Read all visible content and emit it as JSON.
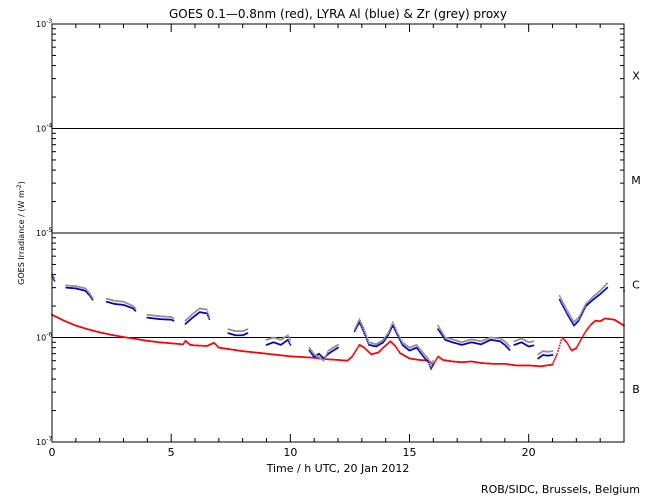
{
  "chart_data": {
    "type": "scatter",
    "title": "GOES 0.1—0.8nm (red), LYRA Al (blue) & Zr (grey) proxy",
    "xlabel": "Time / h UTC, 20 Jan 2012",
    "ylabel": "GOES Irradiance / (W m",
    "ylabel_sup": "-2",
    "ylabel_close": ")",
    "xlim": [
      0,
      24
    ],
    "ylim": [
      1e-07,
      0.001
    ],
    "yscale": "log",
    "x_ticks": [
      0,
      5,
      10,
      15,
      20
    ],
    "x_tick_labels": [
      "0",
      "5",
      "10",
      "15",
      "20"
    ],
    "y_ticks": [
      {
        "value": 0.001,
        "base": "10",
        "exp": "-3"
      },
      {
        "value": 0.0001,
        "base": "10",
        "exp": "-4"
      },
      {
        "value": 1e-05,
        "base": "10",
        "exp": "-5"
      },
      {
        "value": 1e-06,
        "base": "10",
        "exp": "-6"
      },
      {
        "value": 1e-07,
        "base": "10",
        "exp": "-7"
      }
    ],
    "class_lines": [
      0.0001,
      1e-05,
      1e-06
    ],
    "class_labels": [
      {
        "label": "X",
        "value": 0.00032
      },
      {
        "label": "M",
        "value": 3.2e-05
      },
      {
        "label": "C",
        "value": 3.2e-06
      },
      {
        "label": "B",
        "value": 3.2e-07
      }
    ],
    "series": [
      {
        "color": "#ff0000",
        "style": "dots",
        "segments": [
          [
            [
              0.0,
              1.65e-06
            ],
            [
              0.5,
              1.45e-06
            ],
            [
              1.0,
              1.3e-06
            ],
            [
              1.5,
              1.2e-06
            ],
            [
              2.0,
              1.12e-06
            ],
            [
              2.5,
              1.06e-06
            ],
            [
              3.0,
              1.01e-06
            ],
            [
              3.5,
              9.7e-07
            ],
            [
              4.0,
              9.3e-07
            ],
            [
              4.5,
              9e-07
            ],
            [
              5.0,
              8.8e-07
            ],
            [
              5.5,
              8.6e-07
            ],
            [
              5.6,
              9.3e-07
            ],
            [
              5.8,
              8.5e-07
            ],
            [
              6.0,
              8.4e-07
            ],
            [
              6.5,
              8.3e-07
            ],
            [
              6.8,
              8.9e-07
            ],
            [
              7.0,
              8e-07
            ],
            [
              7.5,
              7.7e-07
            ],
            [
              8.0,
              7.4e-07
            ],
            [
              8.5,
              7.2e-07
            ],
            [
              9.0,
              7e-07
            ],
            [
              9.5,
              6.8e-07
            ],
            [
              10.0,
              6.6e-07
            ],
            [
              10.5,
              6.5e-07
            ],
            [
              11.0,
              6.4e-07
            ],
            [
              11.5,
              6.2e-07
            ],
            [
              12.0,
              6.1e-07
            ],
            [
              12.4,
              6e-07
            ],
            [
              12.6,
              6.6e-07
            ],
            [
              12.9,
              8.5e-07
            ],
            [
              13.1,
              8e-07
            ],
            [
              13.4,
              6.9e-07
            ],
            [
              13.7,
              7.2e-07
            ],
            [
              13.9,
              8e-07
            ],
            [
              14.2,
              9.2e-07
            ],
            [
              14.4,
              8.3e-07
            ],
            [
              14.6,
              7.1e-07
            ],
            [
              15.0,
              6.3e-07
            ],
            [
              15.4,
              6.1e-07
            ],
            [
              15.8,
              6e-07
            ],
            [
              16.0,
              5.5e-07
            ],
            [
              16.2,
              6.6e-07
            ],
            [
              16.4,
              6.1e-07
            ],
            [
              16.8,
              5.9e-07
            ],
            [
              17.2,
              5.8e-07
            ],
            [
              17.6,
              5.9e-07
            ],
            [
              18.0,
              5.7e-07
            ],
            [
              18.5,
              5.6e-07
            ],
            [
              19.0,
              5.6e-07
            ],
            [
              19.5,
              5.4e-07
            ],
            [
              20.0,
              5.4e-07
            ],
            [
              20.5,
              5.3e-07
            ],
            [
              21.0,
              5.5e-07
            ],
            [
              21.2,
              7e-07
            ],
            [
              21.4,
              1e-06
            ],
            [
              21.6,
              9e-07
            ],
            [
              21.8,
              7.5e-07
            ],
            [
              22.0,
              7.9e-07
            ],
            [
              22.2,
              9.6e-07
            ],
            [
              22.4,
              1.15e-06
            ],
            [
              22.6,
              1.32e-06
            ],
            [
              22.8,
              1.45e-06
            ],
            [
              23.0,
              1.43e-06
            ],
            [
              23.2,
              1.52e-06
            ],
            [
              23.6,
              1.48e-06
            ],
            [
              24.0,
              1.3e-06
            ]
          ]
        ]
      },
      {
        "color": "#0000cc",
        "style": "dots",
        "segments": [
          [
            [
              0.0,
              3.9e-06
            ],
            [
              0.1,
              3.5e-06
            ]
          ],
          [
            [
              0.6,
              3e-06
            ],
            [
              1.0,
              2.95e-06
            ],
            [
              1.4,
              2.8e-06
            ],
            [
              1.6,
              2.5e-06
            ],
            [
              1.7,
              2.3e-06
            ]
          ],
          [
            [
              2.3,
              2.2e-06
            ],
            [
              2.6,
              2.1e-06
            ],
            [
              3.0,
              2.05e-06
            ],
            [
              3.4,
              1.9e-06
            ],
            [
              3.5,
              1.8e-06
            ]
          ],
          [
            [
              4.0,
              1.55e-06
            ],
            [
              4.5,
              1.5e-06
            ],
            [
              5.0,
              1.48e-06
            ],
            [
              5.1,
              1.45e-06
            ]
          ],
          [
            [
              5.6,
              1.35e-06
            ],
            [
              5.9,
              1.55e-06
            ],
            [
              6.2,
              1.75e-06
            ],
            [
              6.5,
              1.7e-06
            ],
            [
              6.6,
              1.5e-06
            ]
          ],
          [
            [
              7.4,
              1.1e-06
            ],
            [
              7.7,
              1.05e-06
            ],
            [
              8.0,
              1.05e-06
            ],
            [
              8.2,
              1.1e-06
            ]
          ],
          [
            [
              9.0,
              8.5e-07
            ],
            [
              9.3,
              9e-07
            ],
            [
              9.6,
              8.5e-07
            ],
            [
              9.9,
              9.5e-07
            ],
            [
              10.0,
              8.5e-07
            ]
          ],
          [
            [
              10.8,
              7.5e-07
            ],
            [
              11.0,
              6.5e-07
            ],
            [
              11.2,
              7e-07
            ],
            [
              11.4,
              6.3e-07
            ],
            [
              11.6,
              7e-07
            ],
            [
              11.8,
              7.5e-07
            ],
            [
              12.0,
              8e-07
            ]
          ],
          [
            [
              12.7,
              1.15e-06
            ],
            [
              12.9,
              1.4e-06
            ],
            [
              13.1,
              1.1e-06
            ],
            [
              13.3,
              8.5e-07
            ],
            [
              13.6,
              8.2e-07
            ],
            [
              13.9,
              9e-07
            ],
            [
              14.1,
              1.05e-06
            ],
            [
              14.3,
              1.3e-06
            ],
            [
              14.5,
              1.05e-06
            ],
            [
              14.7,
              8.5e-07
            ],
            [
              15.0,
              7.5e-07
            ],
            [
              15.3,
              8e-07
            ],
            [
              15.6,
              6.5e-07
            ],
            [
              15.8,
              5.8e-07
            ],
            [
              15.9,
              5e-07
            ],
            [
              16.0,
              5.5e-07
            ]
          ],
          [
            [
              16.2,
              1.2e-06
            ],
            [
              16.5,
              9.5e-07
            ],
            [
              16.8,
              9e-07
            ],
            [
              17.2,
              8.5e-07
            ],
            [
              17.6,
              9e-07
            ],
            [
              18.0,
              8.6e-07
            ],
            [
              18.4,
              9.5e-07
            ],
            [
              18.8,
              9.2e-07
            ],
            [
              19.0,
              8.5e-07
            ],
            [
              19.2,
              7.6e-07
            ]
          ],
          [
            [
              19.4,
              8.5e-07
            ],
            [
              19.7,
              9e-07
            ],
            [
              20.0,
              8.2e-07
            ],
            [
              20.2,
              8.4e-07
            ]
          ],
          [
            [
              20.4,
              6.3e-07
            ],
            [
              20.6,
              6.8e-07
            ],
            [
              20.8,
              6.7e-07
            ],
            [
              21.0,
              6.8e-07
            ]
          ],
          [
            [
              21.3,
              2.3e-06
            ],
            [
              21.6,
              1.7e-06
            ],
            [
              21.9,
              1.3e-06
            ],
            [
              22.1,
              1.45e-06
            ],
            [
              22.4,
              2e-06
            ],
            [
              22.7,
              2.3e-06
            ],
            [
              23.0,
              2.6e-06
            ],
            [
              23.3,
              3e-06
            ]
          ],
          [
            [
              24.0,
              2.8e-06
            ]
          ]
        ]
      },
      {
        "color": "#909090",
        "style": "dots",
        "segments": [
          [
            [
              0.0,
              4.1e-06
            ],
            [
              0.1,
              3.7e-06
            ]
          ],
          [
            [
              0.6,
              3.15e-06
            ],
            [
              1.0,
              3.1e-06
            ],
            [
              1.4,
              2.95e-06
            ],
            [
              1.6,
              2.6e-06
            ],
            [
              1.7,
              2.4e-06
            ]
          ],
          [
            [
              2.3,
              2.35e-06
            ],
            [
              2.6,
              2.25e-06
            ],
            [
              3.0,
              2.2e-06
            ],
            [
              3.4,
              2e-06
            ],
            [
              3.5,
              1.9e-06
            ]
          ],
          [
            [
              4.0,
              1.65e-06
            ],
            [
              4.5,
              1.6e-06
            ],
            [
              5.0,
              1.57e-06
            ],
            [
              5.1,
              1.53e-06
            ]
          ],
          [
            [
              5.6,
              1.45e-06
            ],
            [
              5.9,
              1.68e-06
            ],
            [
              6.2,
              1.9e-06
            ],
            [
              6.5,
              1.85e-06
            ],
            [
              6.6,
              1.6e-06
            ]
          ],
          [
            [
              7.4,
              1.2e-06
            ],
            [
              7.7,
              1.15e-06
            ],
            [
              8.0,
              1.15e-06
            ],
            [
              8.2,
              1.2e-06
            ]
          ],
          [
            [
              9.0,
              9.5e-07
            ],
            [
              9.3,
              1e-06
            ],
            [
              9.6,
              9.5e-07
            ],
            [
              9.9,
              1.05e-06
            ],
            [
              10.0,
              9.5e-07
            ]
          ],
          [
            [
              10.8,
              8e-07
            ],
            [
              11.0,
              6.9e-07
            ],
            [
              11.2,
              6.5e-07
            ],
            [
              11.4,
              6e-07
            ],
            [
              11.6,
              7.5e-07
            ],
            [
              11.8,
              8e-07
            ],
            [
              12.0,
              8.5e-07
            ]
          ],
          [
            [
              12.7,
              1.2e-06
            ],
            [
              12.9,
              1.5e-06
            ],
            [
              13.1,
              1.2e-06
            ],
            [
              13.3,
              9e-07
            ],
            [
              13.6,
              8.6e-07
            ],
            [
              13.9,
              9.5e-07
            ],
            [
              14.1,
              1.1e-06
            ],
            [
              14.3,
              1.4e-06
            ],
            [
              14.5,
              1.1e-06
            ],
            [
              14.7,
              9e-07
            ],
            [
              15.0,
              8e-07
            ],
            [
              15.3,
              8.5e-07
            ],
            [
              15.6,
              7e-07
            ],
            [
              15.8,
              6.2e-07
            ],
            [
              15.9,
              5.4e-07
            ],
            [
              16.0,
              6e-07
            ]
          ],
          [
            [
              16.2,
              1.3e-06
            ],
            [
              16.5,
              1e-06
            ],
            [
              16.8,
              9.6e-07
            ],
            [
              17.2,
              9e-07
            ],
            [
              17.6,
              9.6e-07
            ],
            [
              18.0,
              9.2e-07
            ],
            [
              18.4,
              1e-06
            ],
            [
              18.8,
              9.8e-07
            ],
            [
              19.0,
              9.2e-07
            ],
            [
              19.2,
              8.2e-07
            ]
          ],
          [
            [
              19.4,
              9.2e-07
            ],
            [
              19.7,
              9.8e-07
            ],
            [
              20.0,
              9e-07
            ],
            [
              20.2,
              9.2e-07
            ]
          ],
          [
            [
              20.4,
              6.9e-07
            ],
            [
              20.6,
              7.4e-07
            ],
            [
              20.8,
              7.3e-07
            ],
            [
              21.0,
              7.4e-07
            ]
          ],
          [
            [
              21.3,
              2.5e-06
            ],
            [
              21.6,
              1.85e-06
            ],
            [
              21.9,
              1.4e-06
            ],
            [
              22.1,
              1.55e-06
            ],
            [
              22.4,
              2.1e-06
            ],
            [
              22.7,
              2.45e-06
            ],
            [
              23.0,
              2.8e-06
            ],
            [
              23.3,
              3.3e-06
            ]
          ],
          [
            [
              24.0,
              3e-06
            ]
          ]
        ]
      }
    ]
  },
  "footer": {
    "credit": "ROB/SIDC, Brussels, Belgium"
  }
}
